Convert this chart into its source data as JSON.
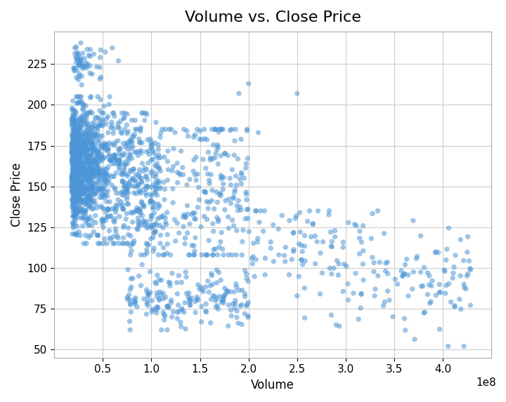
{
  "title": "Volume vs. Close Price",
  "xlabel": "Volume",
  "ylabel": "Close Price",
  "xlim": [
    0,
    450000000.0
  ],
  "ylim": [
    45,
    245
  ],
  "xticks": [
    50000000.0,
    100000000.0,
    150000000.0,
    200000000.0,
    250000000.0,
    300000000.0,
    350000000.0,
    400000000.0
  ],
  "yticks": [
    50,
    75,
    100,
    125,
    150,
    175,
    200,
    225
  ],
  "scatter_color": "#4C96D7",
  "scatter_alpha": 0.55,
  "scatter_size": 28,
  "grid_color": "#cccccc",
  "grid_linewidth": 0.8,
  "title_fontsize": 16,
  "label_fontsize": 12,
  "tick_fontsize": 11,
  "figsize": [
    7.2,
    5.73
  ],
  "dpi": 100,
  "seed": 7
}
